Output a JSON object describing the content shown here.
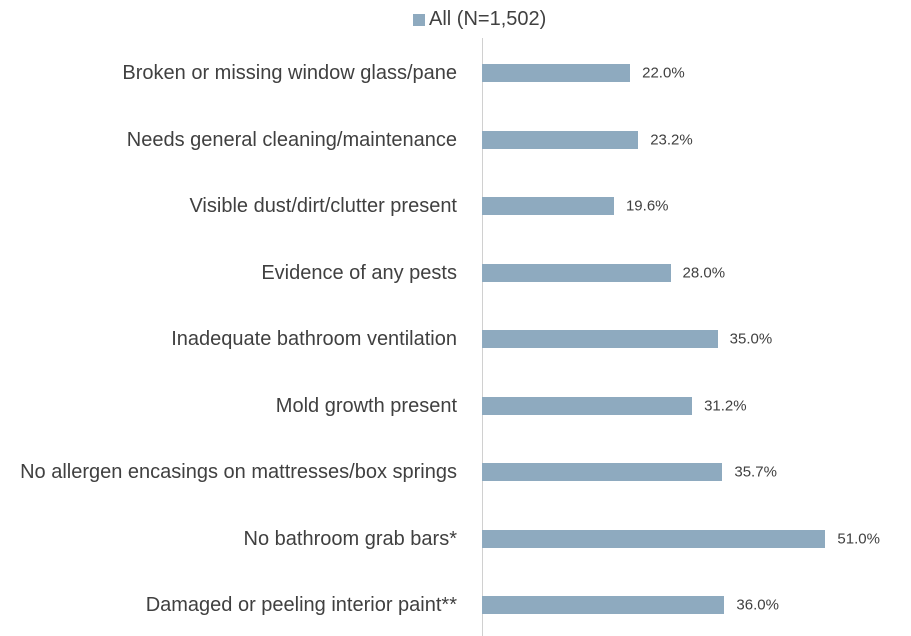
{
  "chart_data": {
    "type": "barh",
    "categories": [
      "Broken or missing window glass/pane",
      "Needs general cleaning/maintenance",
      "Visible dust/dirt/clutter present",
      "Evidence of any pests",
      "Inadequate bathroom ventilation",
      "Mold growth present",
      "No allergen encasings on mattresses/box springs",
      "No bathroom grab bars*",
      "Damaged or peeling interior paint**"
    ],
    "series": [
      {
        "name": "All (N=1,502)",
        "color": "#8eaabf",
        "values": [
          22.0,
          23.2,
          19.6,
          28.0,
          35.0,
          31.2,
          35.7,
          51.0,
          36.0
        ],
        "value_labels": [
          "22.0%",
          "23.2%",
          "19.6%",
          "28.0%",
          "35.0%",
          "31.2%",
          "35.7%",
          "51.0%",
          "36.0%"
        ]
      }
    ],
    "xlim": [
      0,
      60
    ],
    "legend": "top"
  }
}
